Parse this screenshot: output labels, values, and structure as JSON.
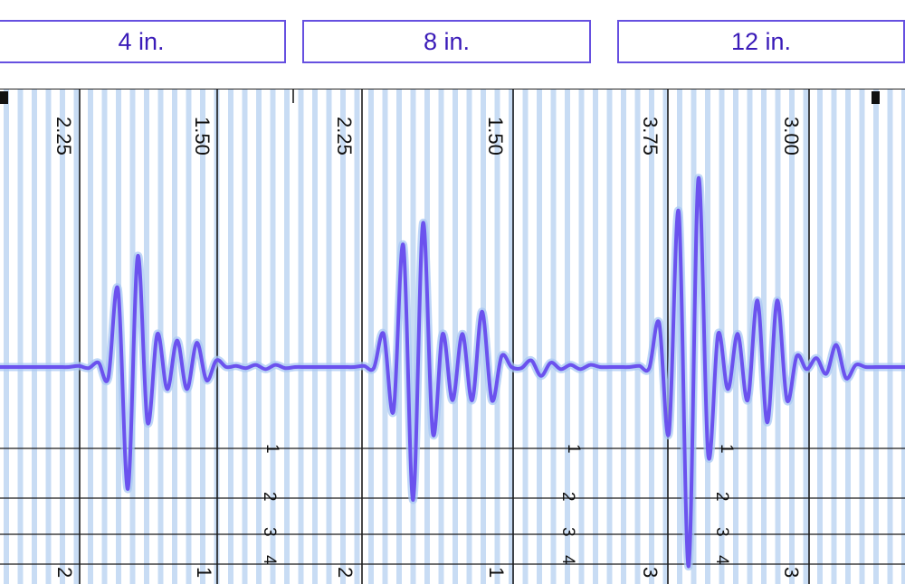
{
  "tabs": [
    {
      "label": "4 in."
    },
    {
      "label": "8 in."
    },
    {
      "label": "12 in."
    }
  ],
  "colors": {
    "accent": "#6650e0",
    "tab_text": "#3a1bb8",
    "trace": "#6b52ee",
    "trace_glow": "#a8c8f4",
    "grid_stripe": "#c8dcf4"
  },
  "chart_data": {
    "type": "line",
    "title": "",
    "xlabel": "",
    "ylabel": "",
    "grid": true,
    "panels": [
      {
        "label": "4 in.",
        "scale_labels": [
          "2.25",
          "1.50"
        ],
        "corner_labels": [
          "2",
          "1"
        ]
      },
      {
        "label": "8 in.",
        "scale_labels": [
          "2.25",
          "1.50"
        ],
        "corner_labels": [
          "2",
          "1"
        ]
      },
      {
        "label": "12 in.",
        "scale_labels": [
          "3.75",
          "3.00"
        ],
        "corner_labels": [
          "3",
          "3"
        ]
      }
    ],
    "ruler_labels": [
      "1",
      "2",
      "3",
      "4"
    ],
    "series": [
      {
        "y": [
          0,
          0,
          0,
          0,
          0,
          0,
          0,
          0,
          0.05,
          -0.05,
          0.2,
          -0.5,
          3.5,
          -5.5,
          5.0,
          -2.5,
          1.5,
          -1.0,
          1.2,
          -1.0,
          1.1,
          -0.6,
          0.3,
          0,
          0.05,
          -0.05,
          0.1,
          -0.1,
          0.1,
          -0.05,
          0,
          0,
          0,
          0,
          0,
          0,
          0,
          0.05,
          -0.05,
          1.5,
          -2.0,
          5.5,
          -6.0,
          6.5,
          -3.0,
          1.5,
          -1.5,
          1.5,
          -1.5,
          2.5,
          -1.5,
          0.5,
          0,
          -0.05,
          0.3,
          -0.4,
          0.2,
          -0.1,
          0.1,
          -0.1,
          0.1,
          0,
          0,
          0,
          0,
          0.05,
          -0.05,
          2.0,
          -3.0,
          7.0,
          -9.0,
          8.5,
          -4.0,
          1.5,
          -1.0,
          1.5,
          -1.5,
          3.0,
          -2.5,
          3.0,
          -1.5,
          0.5,
          -0.1,
          0.4,
          -0.3,
          1.0,
          -0.5,
          0.1,
          0,
          0,
          0,
          0,
          0
        ]
      }
    ]
  }
}
